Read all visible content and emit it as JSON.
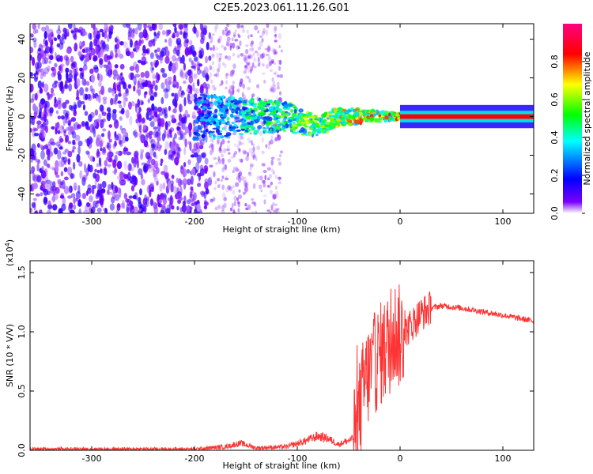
{
  "title": "C2E5.2023.061.11.26.G01",
  "chart_data": [
    {
      "type": "heatmap",
      "title": "C2E5.2023.061.11.26.G01",
      "xlabel": "Height of straight line (km)",
      "ylabel": "Frequency (Hz)",
      "xlim": [
        -360,
        130
      ],
      "ylim": [
        -50,
        48
      ],
      "xticks": [
        -300,
        -200,
        -100,
        0,
        100
      ],
      "xtick_labels": [
        "-300",
        "-200",
        "-100",
        "0",
        "100"
      ],
      "yticks": [
        -40,
        -20,
        0,
        20,
        40
      ],
      "ytick_labels": [
        "-40",
        "-20",
        "0",
        "20",
        "40"
      ],
      "colorbar": {
        "label": "Normalized spectral amplitude",
        "range": [
          0,
          1
        ],
        "ticks": [
          0.0,
          0.2,
          0.4,
          0.6,
          0.8
        ],
        "tick_labels": [
          "0.0",
          "0.2",
          "0.4",
          "0.6",
          "0.8"
        ],
        "colormap": [
          "#ffffff",
          "#7a00ff",
          "#0000ff",
          "#00ffff",
          "#00ff00",
          "#ffff00",
          "#ff0000",
          "#ff0080"
        ]
      },
      "description_series": [
        {
          "name": "noise-band",
          "x_range": [
            -360,
            -185
          ],
          "f_range": [
            -50,
            48
          ],
          "amplitude": 0.12
        },
        {
          "name": "scattered-noise",
          "x_range": [
            -185,
            -115
          ],
          "f_range": [
            -50,
            48
          ],
          "amplitude": 0.06
        },
        {
          "name": "converging-signal",
          "x_range": [
            -200,
            0
          ],
          "center_freq": 0,
          "half_width_start": 12,
          "half_width_end": 1.5,
          "amplitude_start": 0.35,
          "amplitude_end": 0.95
        },
        {
          "name": "carrier-line",
          "x_range": [
            0,
            130
          ],
          "center_freq": 0,
          "half_width": 1.5,
          "amplitude": 0.85
        }
      ]
    },
    {
      "type": "line",
      "xlabel": "Height of straight line (km)",
      "ylabel": "SNR (10 * V/V)",
      "y_multiplier_label": "(x10",
      "y_multiplier_exp": "4",
      "y_multiplier_close": ")",
      "xlim": [
        -360,
        130
      ],
      "ylim": [
        0,
        1.6
      ],
      "xticks": [
        -300,
        -200,
        -100,
        0,
        100
      ],
      "xtick_labels": [
        "-300",
        "-200",
        "-100",
        "0",
        "100"
      ],
      "yticks": [
        0.0,
        0.5,
        1.0,
        1.5
      ],
      "ytick_labels": [
        "0.0",
        "0.5",
        "1.0",
        "1.5"
      ],
      "series": [
        {
          "name": "SNR",
          "color": "#ff3333",
          "x": [
            -360,
            -300,
            -250,
            -200,
            -170,
            -155,
            -140,
            -110,
            -95,
            -80,
            -70,
            -60,
            -45,
            -40,
            -35,
            -30,
            -20,
            -10,
            -5,
            0,
            10,
            20,
            30,
            40,
            60,
            80,
            100,
            130
          ],
          "y": [
            0.01,
            0.01,
            0.01,
            0.01,
            0.03,
            0.06,
            0.02,
            0.03,
            0.07,
            0.12,
            0.1,
            0.05,
            0.1,
            0.3,
            0.55,
            0.65,
            0.8,
            0.9,
            1.0,
            0.95,
            1.05,
            1.15,
            1.2,
            1.22,
            1.2,
            1.17,
            1.14,
            1.09
          ]
        }
      ]
    }
  ]
}
